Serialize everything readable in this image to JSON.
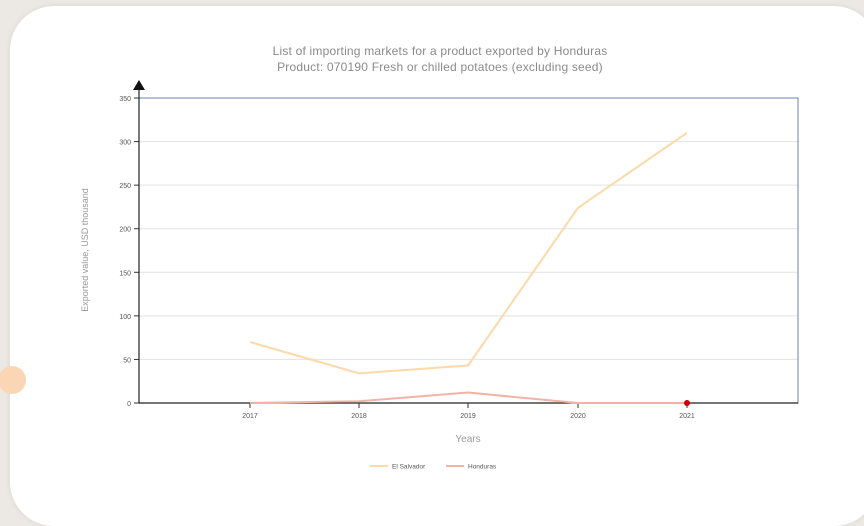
{
  "title_line1": "List of importing markets for a product exported by Honduras",
  "title_line2": "Product: 070190 Fresh or chilled potatoes (excluding seed)",
  "colors": {
    "el_salvador": "#fbd9a8",
    "honduras": "#f2b3a6",
    "marker": "#cc0000",
    "frame": "#6d7fb0",
    "grid": "#e2e2e2"
  },
  "chart_data": {
    "type": "line",
    "title": "List of importing markets for a product exported by Honduras",
    "subtitle": "Product: 070190 Fresh or chilled potatoes (excluding seed)",
    "xlabel": "Years",
    "ylabel": "Exported value, USD thousand",
    "categories": [
      "2017",
      "2018",
      "2019",
      "2020",
      "2021"
    ],
    "yticks": [
      0,
      50,
      100,
      150,
      200,
      250,
      300,
      350
    ],
    "ylim": [
      0,
      350
    ],
    "grid": true,
    "legend_position": "bottom",
    "series": [
      {
        "name": "El Salvador",
        "values": [
          70,
          34,
          43,
          224,
          310
        ]
      },
      {
        "name": "Honduras",
        "values": [
          0,
          2,
          12,
          0,
          0
        ]
      }
    ]
  }
}
